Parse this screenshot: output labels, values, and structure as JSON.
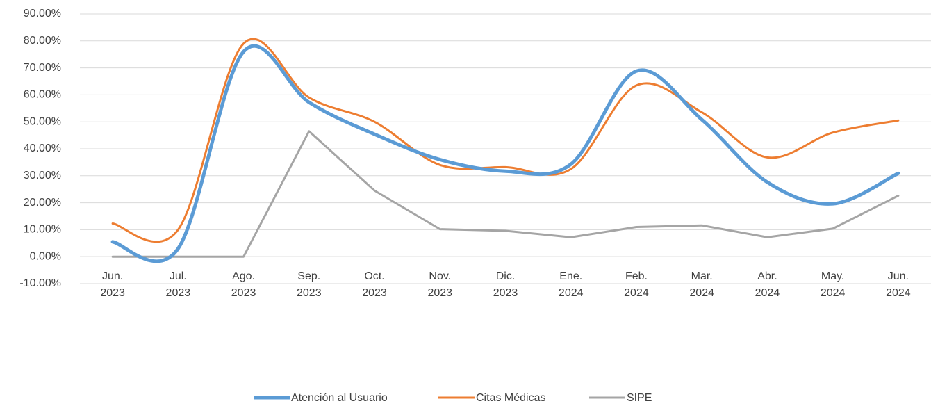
{
  "chart_data": {
    "type": "line",
    "categories": [
      "Jun. 2023",
      "Jul. 2023",
      "Ago. 2023",
      "Sep. 2023",
      "Oct. 2023",
      "Nov. 2023",
      "Dic. 2023",
      "Ene. 2024",
      "Feb. 2024",
      "Mar. 2024",
      "Abr. 2024",
      "May. 2024",
      "Jun. 2024"
    ],
    "series": [
      {
        "name": "Atención al Usuario",
        "color": "#5b9bd5",
        "smooth": true,
        "values": [
          5.5,
          3,
          76,
          57.2,
          45.4,
          36,
          31.7,
          34.3,
          68.8,
          50.8,
          27.6,
          19.6,
          30.9
        ]
      },
      {
        "name": "Citas Médicas",
        "color": "#ed7d31",
        "smooth": true,
        "values": [
          12.3,
          10,
          79,
          59,
          50,
          34,
          33.2,
          32.5,
          63.5,
          53.5,
          36.8,
          46,
          50.5
        ]
      },
      {
        "name": "SIPE",
        "color": "#a5a5a5",
        "smooth": false,
        "values": [
          0,
          0,
          0,
          46.5,
          24.5,
          10.2,
          9.6,
          7.2,
          11,
          11.6,
          7.2,
          10.4,
          22.6
        ]
      }
    ],
    "ylim": [
      -10,
      90
    ],
    "yticks": [
      {
        "value": -10,
        "label": "-10.00%"
      },
      {
        "value": 0,
        "label": "0.00%"
      },
      {
        "value": 10,
        "label": "10.00%"
      },
      {
        "value": 20,
        "label": "20.00%"
      },
      {
        "value": 30,
        "label": "30.00%"
      },
      {
        "value": 40,
        "label": "40.00%"
      },
      {
        "value": 50,
        "label": "50.00%"
      },
      {
        "value": 60,
        "label": "60.00%"
      },
      {
        "value": 70,
        "label": "70.00%"
      },
      {
        "value": 80,
        "label": "80.00%"
      },
      {
        "value": 90,
        "label": "90.00%"
      }
    ],
    "grid": true,
    "legend": "bottom"
  }
}
